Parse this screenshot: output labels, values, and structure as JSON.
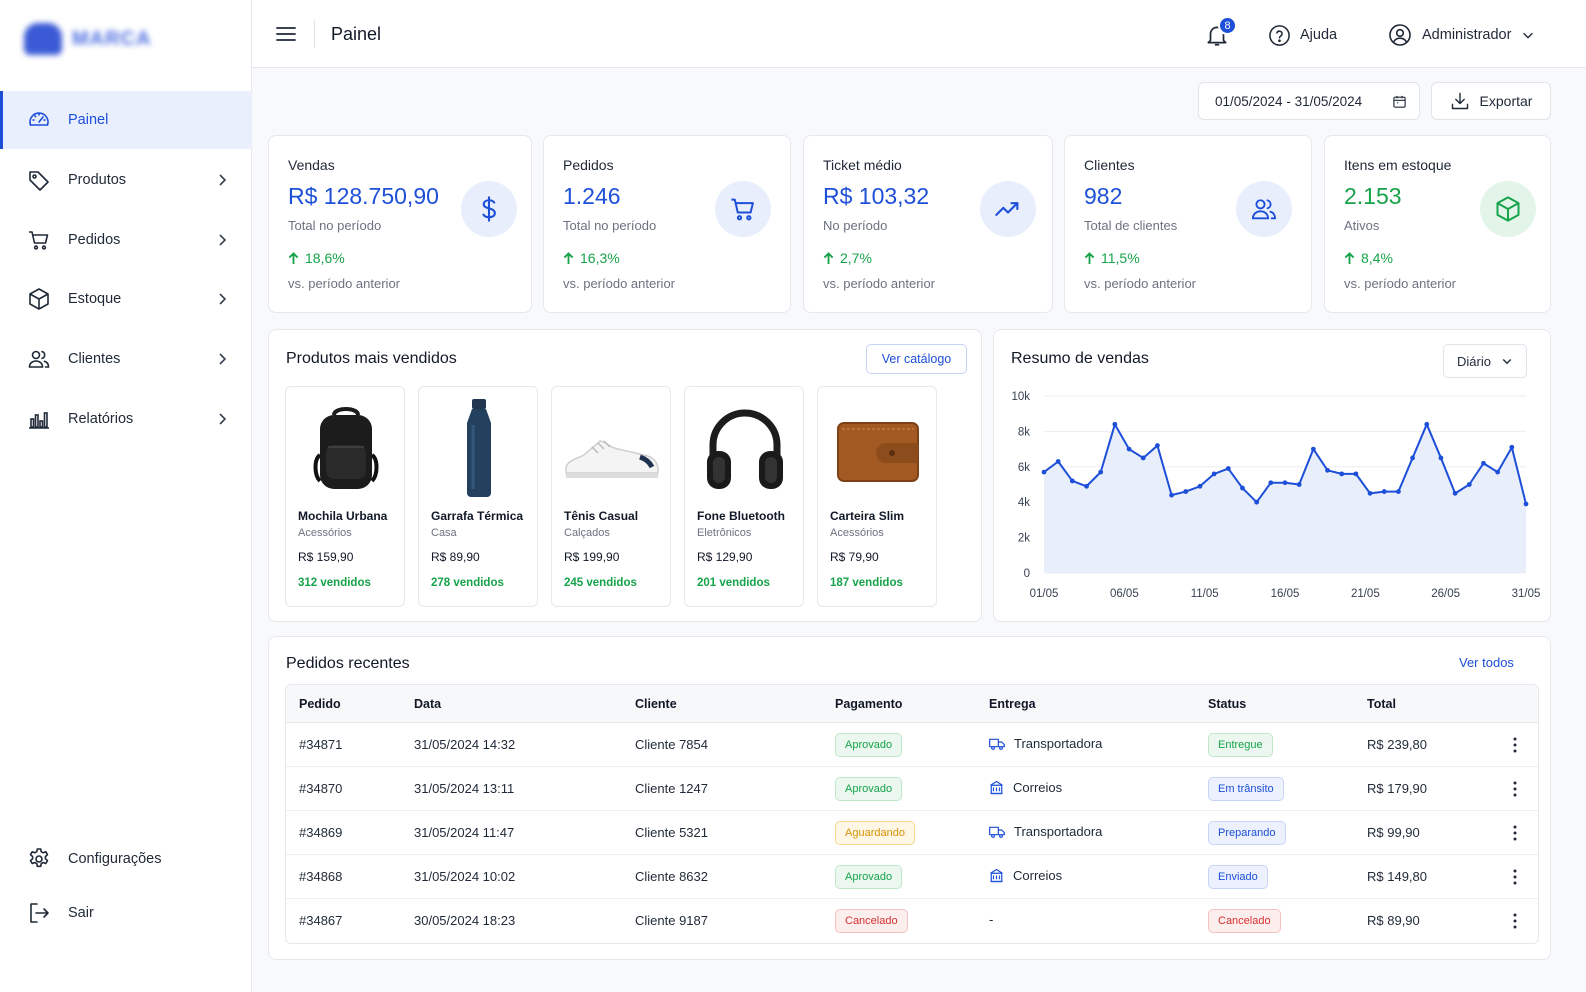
{
  "brand": {
    "name": "MARCA"
  },
  "sidebar": {
    "items": [
      {
        "label": "Painel",
        "icon": "gauge-icon",
        "active": true
      },
      {
        "label": "Produtos",
        "icon": "tag-icon"
      },
      {
        "label": "Pedidos",
        "icon": "cart-icon"
      },
      {
        "label": "Estoque",
        "icon": "box-icon"
      },
      {
        "label": "Clientes",
        "icon": "users-icon"
      },
      {
        "label": "Relatórios",
        "icon": "bar-chart-icon"
      }
    ],
    "bottom": [
      {
        "label": "Configurações",
        "icon": "gear-icon"
      },
      {
        "label": "Sair",
        "icon": "logout-icon"
      }
    ]
  },
  "header": {
    "title": "Painel",
    "notifications": "8",
    "help": "Ajuda",
    "user": "Administrador"
  },
  "toolbar": {
    "date_range": "01/05/2024 - 31/05/2024",
    "export": "Exportar"
  },
  "kpis": [
    {
      "title": "Vendas",
      "value": "R$ 128.750,90",
      "sub": "Total no período",
      "delta": "18,6%",
      "cmp": "vs. período anterior",
      "icon": "dollar-icon"
    },
    {
      "title": "Pedidos",
      "value": "1.246",
      "sub": "Total no período",
      "delta": "16,3%",
      "cmp": "vs. período anterior",
      "icon": "cart-icon"
    },
    {
      "title": "Ticket médio",
      "value": "R$ 103,32",
      "sub": "No período",
      "delta": "2,7%",
      "cmp": "vs. período anterior",
      "icon": "trend-up-icon"
    },
    {
      "title": "Clientes",
      "value": "982",
      "sub": "Total de clientes",
      "delta": "11,5%",
      "cmp": "vs. período anterior",
      "icon": "users-icon"
    },
    {
      "title": "Itens em estoque",
      "value": "2.153",
      "sub": "Ativos",
      "delta": "8,4%",
      "cmp": "vs. período anterior",
      "icon": "box-icon"
    }
  ],
  "top_products": {
    "title": "Produtos mais vendidos",
    "catalog_button": "Ver catálogo",
    "items": [
      {
        "name": "Mochila Urbana",
        "category": "Acessórios",
        "price": "R$ 159,90",
        "sold": "312 vendidos",
        "image": "backpack-image"
      },
      {
        "name": "Garrafa Térmica",
        "category": "Casa",
        "price": "R$ 89,90",
        "sold": "278 vendidos",
        "image": "bottle-image"
      },
      {
        "name": "Tênis Casual",
        "category": "Calçados",
        "price": "R$ 199,90",
        "sold": "245 vendidos",
        "image": "sneaker-image"
      },
      {
        "name": "Fone Bluetooth",
        "category": "Eletrônicos",
        "price": "R$ 129,90",
        "sold": "201 vendidos",
        "image": "headphones-image"
      },
      {
        "name": "Carteira Slim",
        "category": "Acessórios",
        "price": "R$ 79,90",
        "sold": "187 vendidos",
        "image": "wallet-image"
      }
    ]
  },
  "sales_summary": {
    "title": "Resumo de vendas",
    "period": "Diário"
  },
  "chart_data": {
    "type": "area",
    "x_ticks": [
      "01/05",
      "06/05",
      "11/05",
      "16/05",
      "21/05",
      "26/05",
      "31/05"
    ],
    "y_ticks": [
      "0",
      "2k",
      "4k",
      "6k",
      "8k",
      "10k"
    ],
    "ylim": [
      0,
      10000
    ],
    "values": [
      5700,
      6300,
      5200,
      4900,
      5700,
      8400,
      7000,
      6500,
      7200,
      4400,
      4600,
      4900,
      5600,
      5900,
      4800,
      4000,
      5100,
      5100,
      5000,
      7000,
      5800,
      5600,
      5600,
      4500,
      4600,
      4600,
      6500,
      8400,
      6500,
      4500,
      5000,
      6200,
      5700,
      7100,
      3900
    ],
    "color": "#1d4fd8"
  },
  "orders": {
    "title": "Pedidos recentes",
    "see_all": "Ver todos",
    "columns": [
      "Pedido",
      "Data",
      "Cliente",
      "Pagamento",
      "Entrega",
      "Status",
      "Total"
    ],
    "rows": [
      {
        "id": "#34871",
        "date": "31/05/2024 14:32",
        "client": "Cliente 7854",
        "payment": "Aprovado",
        "payment_tone": "green",
        "delivery": "Transportadora",
        "delivery_icon": "truck-icon",
        "status": "Entregue",
        "status_tone": "green",
        "total": "R$ 239,80"
      },
      {
        "id": "#34870",
        "date": "31/05/2024 13:11",
        "client": "Cliente 1247",
        "payment": "Aprovado",
        "payment_tone": "green",
        "delivery": "Correios",
        "delivery_icon": "post-office-icon",
        "status": "Em trânsito",
        "status_tone": "blue",
        "total": "R$ 179,90"
      },
      {
        "id": "#34869",
        "date": "31/05/2024 11:47",
        "client": "Cliente 5321",
        "payment": "Aguardando",
        "payment_tone": "yellow",
        "delivery": "Transportadora",
        "delivery_icon": "truck-icon",
        "status": "Preparando",
        "status_tone": "blue",
        "total": "R$ 99,90"
      },
      {
        "id": "#34868",
        "date": "31/05/2024 10:02",
        "client": "Cliente 8632",
        "payment": "Aprovado",
        "payment_tone": "green",
        "delivery": "Correios",
        "delivery_icon": "post-office-icon",
        "status": "Enviado",
        "status_tone": "blue",
        "total": "R$ 149,80"
      },
      {
        "id": "#34867",
        "date": "30/05/2024 18:23",
        "client": "Cliente 9187",
        "payment": "Cancelado",
        "payment_tone": "red",
        "delivery": "-",
        "delivery_icon": "",
        "status": "Cancelado",
        "status_tone": "red",
        "total": "R$ 89,90"
      }
    ]
  }
}
